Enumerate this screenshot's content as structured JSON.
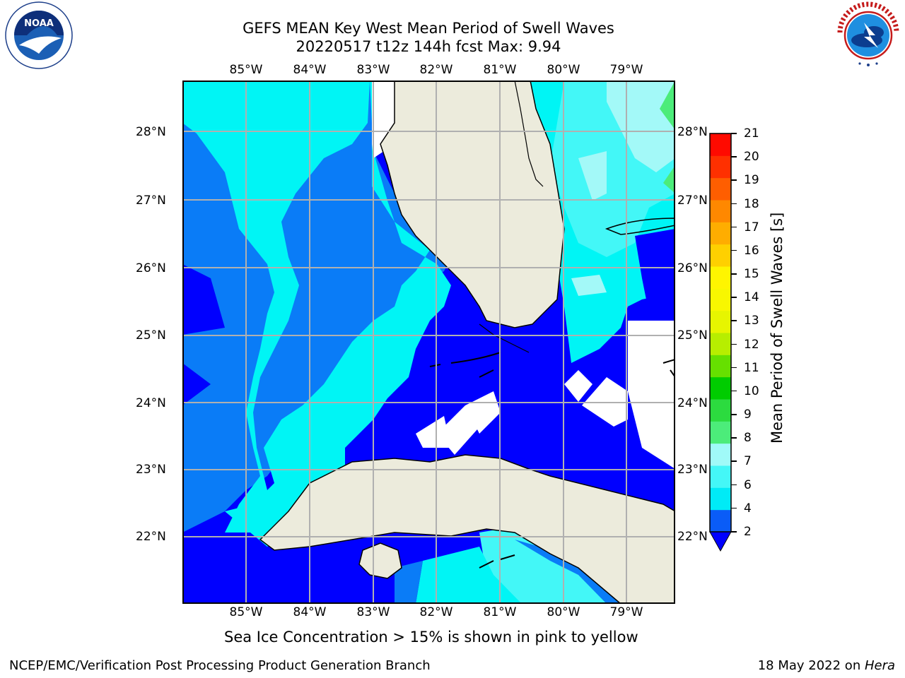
{
  "title": {
    "line1": "GEFS MEAN Key West Mean Period of Swell Waves",
    "line2": "20220517 t12z 144h fcst   Max: 9.94"
  },
  "logos": {
    "left": {
      "name": "NOAA",
      "ring_text": "NATIONAL OCEANIC AND ATMOSPHERIC ADMINISTRATION · U.S. DEPARTMENT OF COMMERCE"
    },
    "right": {
      "ring_text": "NATIONAL WEATHER SERVICE"
    }
  },
  "map": {
    "lon_labels": [
      "85°W",
      "84°W",
      "83°W",
      "82°W",
      "81°W",
      "80°W",
      "79°W"
    ],
    "lat_labels": [
      "28°N",
      "27°N",
      "26°N",
      "25°N",
      "24°N",
      "23°N",
      "22°N"
    ],
    "land_color": "#ecebdc",
    "grid_color": "#b0b0b0"
  },
  "colorbar": {
    "title": "Mean Period of Swell Waves [s]",
    "ticks": [
      "21",
      "20",
      "19",
      "18",
      "17",
      "16",
      "15",
      "14",
      "13",
      "12",
      "11",
      "10",
      "9",
      "8",
      "7",
      "6",
      "4",
      "2"
    ],
    "colors": [
      "#0a5cf7",
      "#00ebf6",
      "#44f7f7",
      "#a0faf8",
      "#4cec7a",
      "#2cdb3f",
      "#00cc00",
      "#66e000",
      "#b7ee00",
      "#e7f500",
      "#f8f700",
      "#fff500",
      "#ffd000",
      "#ffad00",
      "#ff8800",
      "#ff5e00",
      "#ff3000",
      "#ff0a00"
    ],
    "extend_color": "#0000ff"
  },
  "field_colors": {
    "level_2_4": "#0000ff",
    "level_4_6": "#0a7cf7",
    "level_6_7": "#00f5f5",
    "level_7_8": "#43f7f7",
    "level_8_9": "#a3f9f8",
    "level_9_10": "#4cec7a"
  },
  "note": "Sea Ice Concentration > 15% is shown in pink to yellow",
  "footer": {
    "left": "NCEP/EMC/Verification Post Processing Product Generation Branch",
    "date": "18 May 2022 on ",
    "host": "Hera"
  }
}
